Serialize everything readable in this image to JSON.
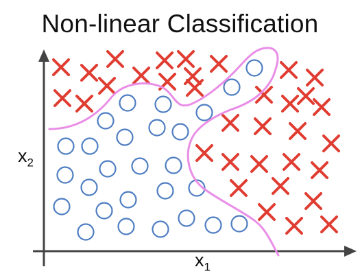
{
  "title": "Non-linear Classification",
  "axes": {
    "x_label": "x",
    "x_sub": "1",
    "y_label": "x",
    "y_sub": "2"
  },
  "colors": {
    "cross": "#e03c31",
    "circle": "#4f7ec2",
    "boundary": "#e98ee6",
    "axis": "#444444"
  },
  "crosses": [
    [
      89,
      98
    ],
    [
      130,
      106
    ],
    [
      168,
      86
    ],
    [
      206,
      110
    ],
    [
      156,
      125
    ],
    [
      91,
      143
    ],
    [
      123,
      151
    ],
    [
      240,
      88
    ],
    [
      271,
      86
    ],
    [
      281,
      111
    ],
    [
      244,
      119
    ],
    [
      284,
      128
    ],
    [
      319,
      93
    ],
    [
      421,
      102
    ],
    [
      459,
      113
    ],
    [
      446,
      140
    ],
    [
      385,
      138
    ],
    [
      423,
      151
    ],
    [
      469,
      156
    ],
    [
      336,
      179
    ],
    [
      383,
      184
    ],
    [
      434,
      191
    ],
    [
      483,
      209
    ],
    [
      298,
      223
    ],
    [
      336,
      236
    ],
    [
      378,
      239
    ],
    [
      425,
      236
    ],
    [
      466,
      248
    ],
    [
      348,
      274
    ],
    [
      409,
      271
    ],
    [
      457,
      293
    ],
    [
      389,
      309
    ],
    [
      429,
      329
    ],
    [
      480,
      327
    ]
  ],
  "circles": [
    [
      371,
      99
    ],
    [
      338,
      127
    ],
    [
      298,
      164
    ],
    [
      186,
      150
    ],
    [
      238,
      152
    ],
    [
      154,
      176
    ],
    [
      229,
      186
    ],
    [
      182,
      200
    ],
    [
      263,
      192
    ],
    [
      96,
      213
    ],
    [
      131,
      213
    ],
    [
      95,
      255
    ],
    [
      157,
      246
    ],
    [
      204,
      242
    ],
    [
      253,
      241
    ],
    [
      130,
      273
    ],
    [
      187,
      291
    ],
    [
      241,
      278
    ],
    [
      287,
      274
    ],
    [
      90,
      301
    ],
    [
      152,
      307
    ],
    [
      125,
      338
    ],
    [
      184,
      330
    ],
    [
      234,
      334
    ],
    [
      272,
      318
    ],
    [
      311,
      328
    ],
    [
      349,
      326
    ]
  ]
}
